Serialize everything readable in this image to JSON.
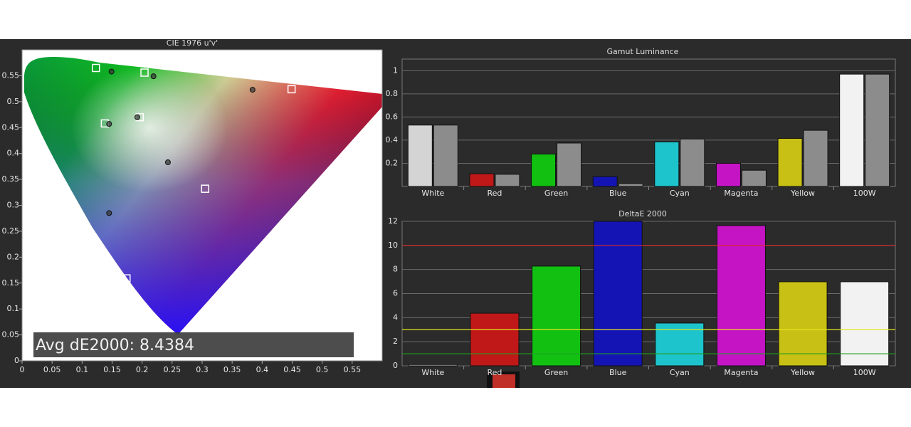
{
  "chart_data": [
    {
      "type": "scatter",
      "title": "CIE 1976 u'v'",
      "annotation": "Avg dE2000: 8.4384",
      "xlim": [
        0,
        0.6
      ],
      "ylim": [
        0,
        0.6
      ],
      "xticks": [
        0,
        0.05,
        0.1,
        0.15,
        0.2,
        0.25,
        0.3,
        0.35,
        0.4,
        0.45,
        0.5,
        0.55
      ],
      "yticks": [
        0,
        0.05,
        0.1,
        0.15,
        0.2,
        0.25,
        0.3,
        0.35,
        0.4,
        0.45,
        0.5,
        0.55
      ],
      "series": [
        {
          "marker": "square",
          "color": "#ffffff",
          "x": [
            0.123,
            0.204,
            0.449,
            0.138,
            0.196,
            0.305,
            0.174
          ],
          "values": [
            0.565,
            0.556,
            0.524,
            0.458,
            0.47,
            0.332,
            0.159
          ]
        },
        {
          "marker": "circle",
          "color": "#333333",
          "x": [
            0.149,
            0.219,
            0.384,
            0.145,
            0.192,
            0.243,
            0.145
          ],
          "values": [
            0.558,
            0.549,
            0.523,
            0.457,
            0.47,
            0.383,
            0.285
          ]
        }
      ]
    },
    {
      "type": "bar",
      "title": "Gamut Luminance",
      "categories": [
        "White",
        "Red",
        "Green",
        "Blue",
        "Cyan",
        "Magenta",
        "Yellow",
        "100W"
      ],
      "ylim": [
        0,
        1.1
      ],
      "yticks": [
        0.2,
        0.4,
        0.6,
        0.8,
        1
      ],
      "grid": true,
      "series": [
        {
          "colors": [
            "#d4d4d4",
            "#c01818",
            "#12c012",
            "#1414b4",
            "#1ec4cc",
            "#c414c4",
            "#c8c014",
            "#f2f2f2"
          ],
          "values": [
            0.53,
            0.11,
            0.28,
            0.085,
            0.385,
            0.2,
            0.415,
            0.97
          ]
        },
        {
          "color": "#8c8c8c",
          "values": [
            0.53,
            0.105,
            0.375,
            0.025,
            0.41,
            0.14,
            0.485,
            0.97
          ]
        }
      ]
    },
    {
      "type": "bar",
      "title": "DeltaE 2000",
      "categories": [
        "White",
        "Red",
        "Green",
        "Blue",
        "Cyan",
        "Magenta",
        "Yellow",
        "100W"
      ],
      "ylim": [
        0,
        12
      ],
      "yticks": [
        0,
        2,
        4,
        6,
        8,
        10,
        12
      ],
      "grid": true,
      "series": [
        {
          "colors": [
            "#d4d4d4",
            "#c01818",
            "#12c012",
            "#1414b4",
            "#1ec4cc",
            "#c414c4",
            "#c8c014",
            "#f2f2f2"
          ],
          "values": [
            0.1,
            4.37,
            8.28,
            12,
            3.55,
            11.65,
            6.98,
            6.98
          ]
        }
      ],
      "reference_lines": [
        {
          "value": 10,
          "color": "#e02828"
        },
        {
          "value": 3,
          "color": "#e6e61e"
        },
        {
          "value": 1,
          "color": "#1ea01e"
        }
      ]
    }
  ]
}
